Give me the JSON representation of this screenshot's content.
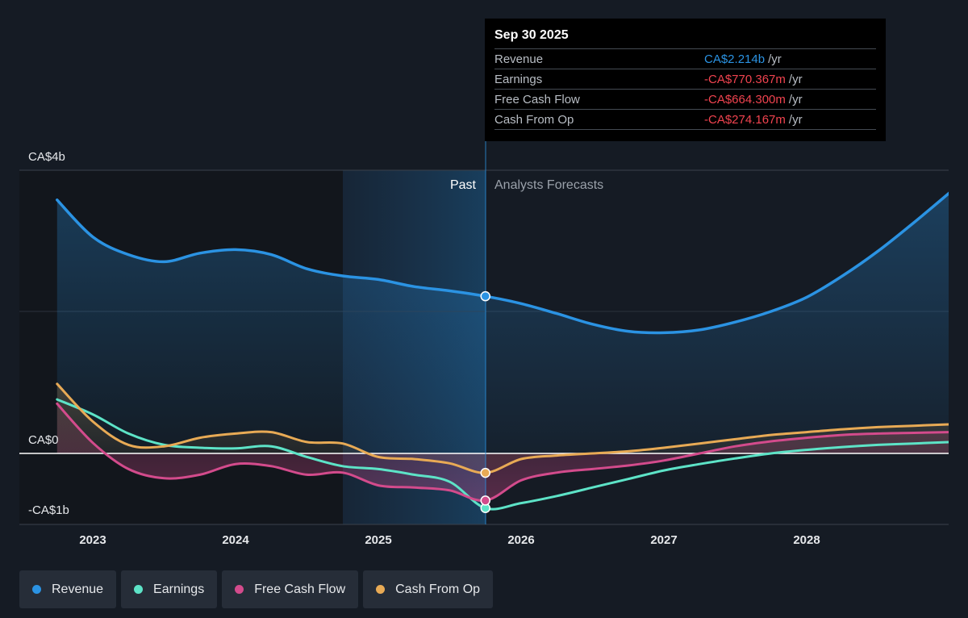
{
  "chart_data": {
    "type": "line",
    "y_ticks": [
      "CA$4b",
      "CA$0",
      "-CA$1b"
    ],
    "x_ticks": [
      "2023",
      "2024",
      "2025",
      "2026",
      "2027",
      "2028"
    ],
    "past_label": "Past",
    "forecast_label": "Analysts Forecasts",
    "ylim": [
      -1.0,
      4.0
    ],
    "xlim": [
      2022.5,
      2029.0
    ],
    "forecast_start": 2025.75,
    "grid": true,
    "series": [
      {
        "name": "Revenue",
        "color": "#2b93e3",
        "x": [
          2022.75,
          2023.0,
          2023.25,
          2023.5,
          2023.75,
          2024.0,
          2024.25,
          2024.5,
          2024.75,
          2025.0,
          2025.25,
          2025.5,
          2025.75,
          2026.0,
          2026.25,
          2026.5,
          2026.75,
          2027.0,
          2027.25,
          2027.5,
          2027.75,
          2028.0,
          2028.25,
          2028.5,
          2028.75,
          2029.0
        ],
        "y": [
          3.57,
          3.05,
          2.8,
          2.7,
          2.82,
          2.87,
          2.8,
          2.6,
          2.5,
          2.45,
          2.35,
          2.29,
          2.214,
          2.11,
          1.97,
          1.82,
          1.72,
          1.7,
          1.74,
          1.85,
          2.0,
          2.2,
          2.5,
          2.85,
          3.25,
          3.67
        ]
      },
      {
        "name": "Earnings",
        "color": "#5de3c7",
        "x": [
          2022.75,
          2023.0,
          2023.25,
          2023.5,
          2023.75,
          2024.0,
          2024.25,
          2024.5,
          2024.75,
          2025.0,
          2025.25,
          2025.5,
          2025.75,
          2026.0,
          2026.25,
          2026.5,
          2026.75,
          2027.0,
          2027.25,
          2027.5,
          2027.75,
          2028.0,
          2028.25,
          2028.5,
          2028.75,
          2029.0
        ],
        "y": [
          0.76,
          0.55,
          0.28,
          0.12,
          0.08,
          0.07,
          0.1,
          -0.05,
          -0.18,
          -0.22,
          -0.3,
          -0.4,
          -0.77,
          -0.7,
          -0.6,
          -0.48,
          -0.36,
          -0.24,
          -0.15,
          -0.07,
          0.0,
          0.05,
          0.09,
          0.12,
          0.14,
          0.16
        ]
      },
      {
        "name": "Free Cash Flow",
        "color": "#d34b8c",
        "x": [
          2022.75,
          2023.0,
          2023.25,
          2023.5,
          2023.75,
          2024.0,
          2024.25,
          2024.5,
          2024.75,
          2025.0,
          2025.25,
          2025.5,
          2025.75,
          2026.0,
          2026.25,
          2026.5,
          2026.75,
          2027.0,
          2027.25,
          2027.5,
          2027.75,
          2028.0,
          2028.25,
          2028.5,
          2028.75,
          2029.0
        ],
        "y": [
          0.7,
          0.15,
          -0.22,
          -0.35,
          -0.3,
          -0.15,
          -0.18,
          -0.3,
          -0.27,
          -0.45,
          -0.48,
          -0.52,
          -0.664,
          -0.38,
          -0.27,
          -0.22,
          -0.17,
          -0.1,
          0.0,
          0.1,
          0.17,
          0.22,
          0.26,
          0.28,
          0.29,
          0.3
        ]
      },
      {
        "name": "Cash From Op",
        "color": "#e8aa55",
        "x": [
          2022.75,
          2023.0,
          2023.25,
          2023.5,
          2023.75,
          2024.0,
          2024.25,
          2024.5,
          2024.75,
          2025.0,
          2025.25,
          2025.5,
          2025.75,
          2026.0,
          2026.25,
          2026.5,
          2026.75,
          2027.0,
          2027.25,
          2027.5,
          2027.75,
          2028.0,
          2028.25,
          2028.5,
          2028.75,
          2029.0
        ],
        "y": [
          0.98,
          0.45,
          0.12,
          0.1,
          0.22,
          0.28,
          0.3,
          0.16,
          0.14,
          -0.05,
          -0.08,
          -0.14,
          -0.274,
          -0.08,
          -0.03,
          0.0,
          0.03,
          0.08,
          0.14,
          0.2,
          0.26,
          0.3,
          0.34,
          0.37,
          0.39,
          0.41
        ]
      }
    ]
  },
  "tooltip": {
    "date": "Sep 30 2025",
    "rows": [
      {
        "name": "Revenue",
        "value": "CA$2.214b",
        "unit": "/yr",
        "color": "#2b93e3"
      },
      {
        "name": "Earnings",
        "value": "-CA$770.367m",
        "unit": "/yr",
        "color": "#f0434f"
      },
      {
        "name": "Free Cash Flow",
        "value": "-CA$664.300m",
        "unit": "/yr",
        "color": "#f0434f"
      },
      {
        "name": "Cash From Op",
        "value": "-CA$274.167m",
        "unit": "/yr",
        "color": "#f0434f"
      }
    ]
  },
  "legend": [
    {
      "label": "Revenue",
      "color": "#2b93e3"
    },
    {
      "label": "Earnings",
      "color": "#5de3c7"
    },
    {
      "label": "Free Cash Flow",
      "color": "#d34b8c"
    },
    {
      "label": "Cash From Op",
      "color": "#e8aa55"
    }
  ]
}
